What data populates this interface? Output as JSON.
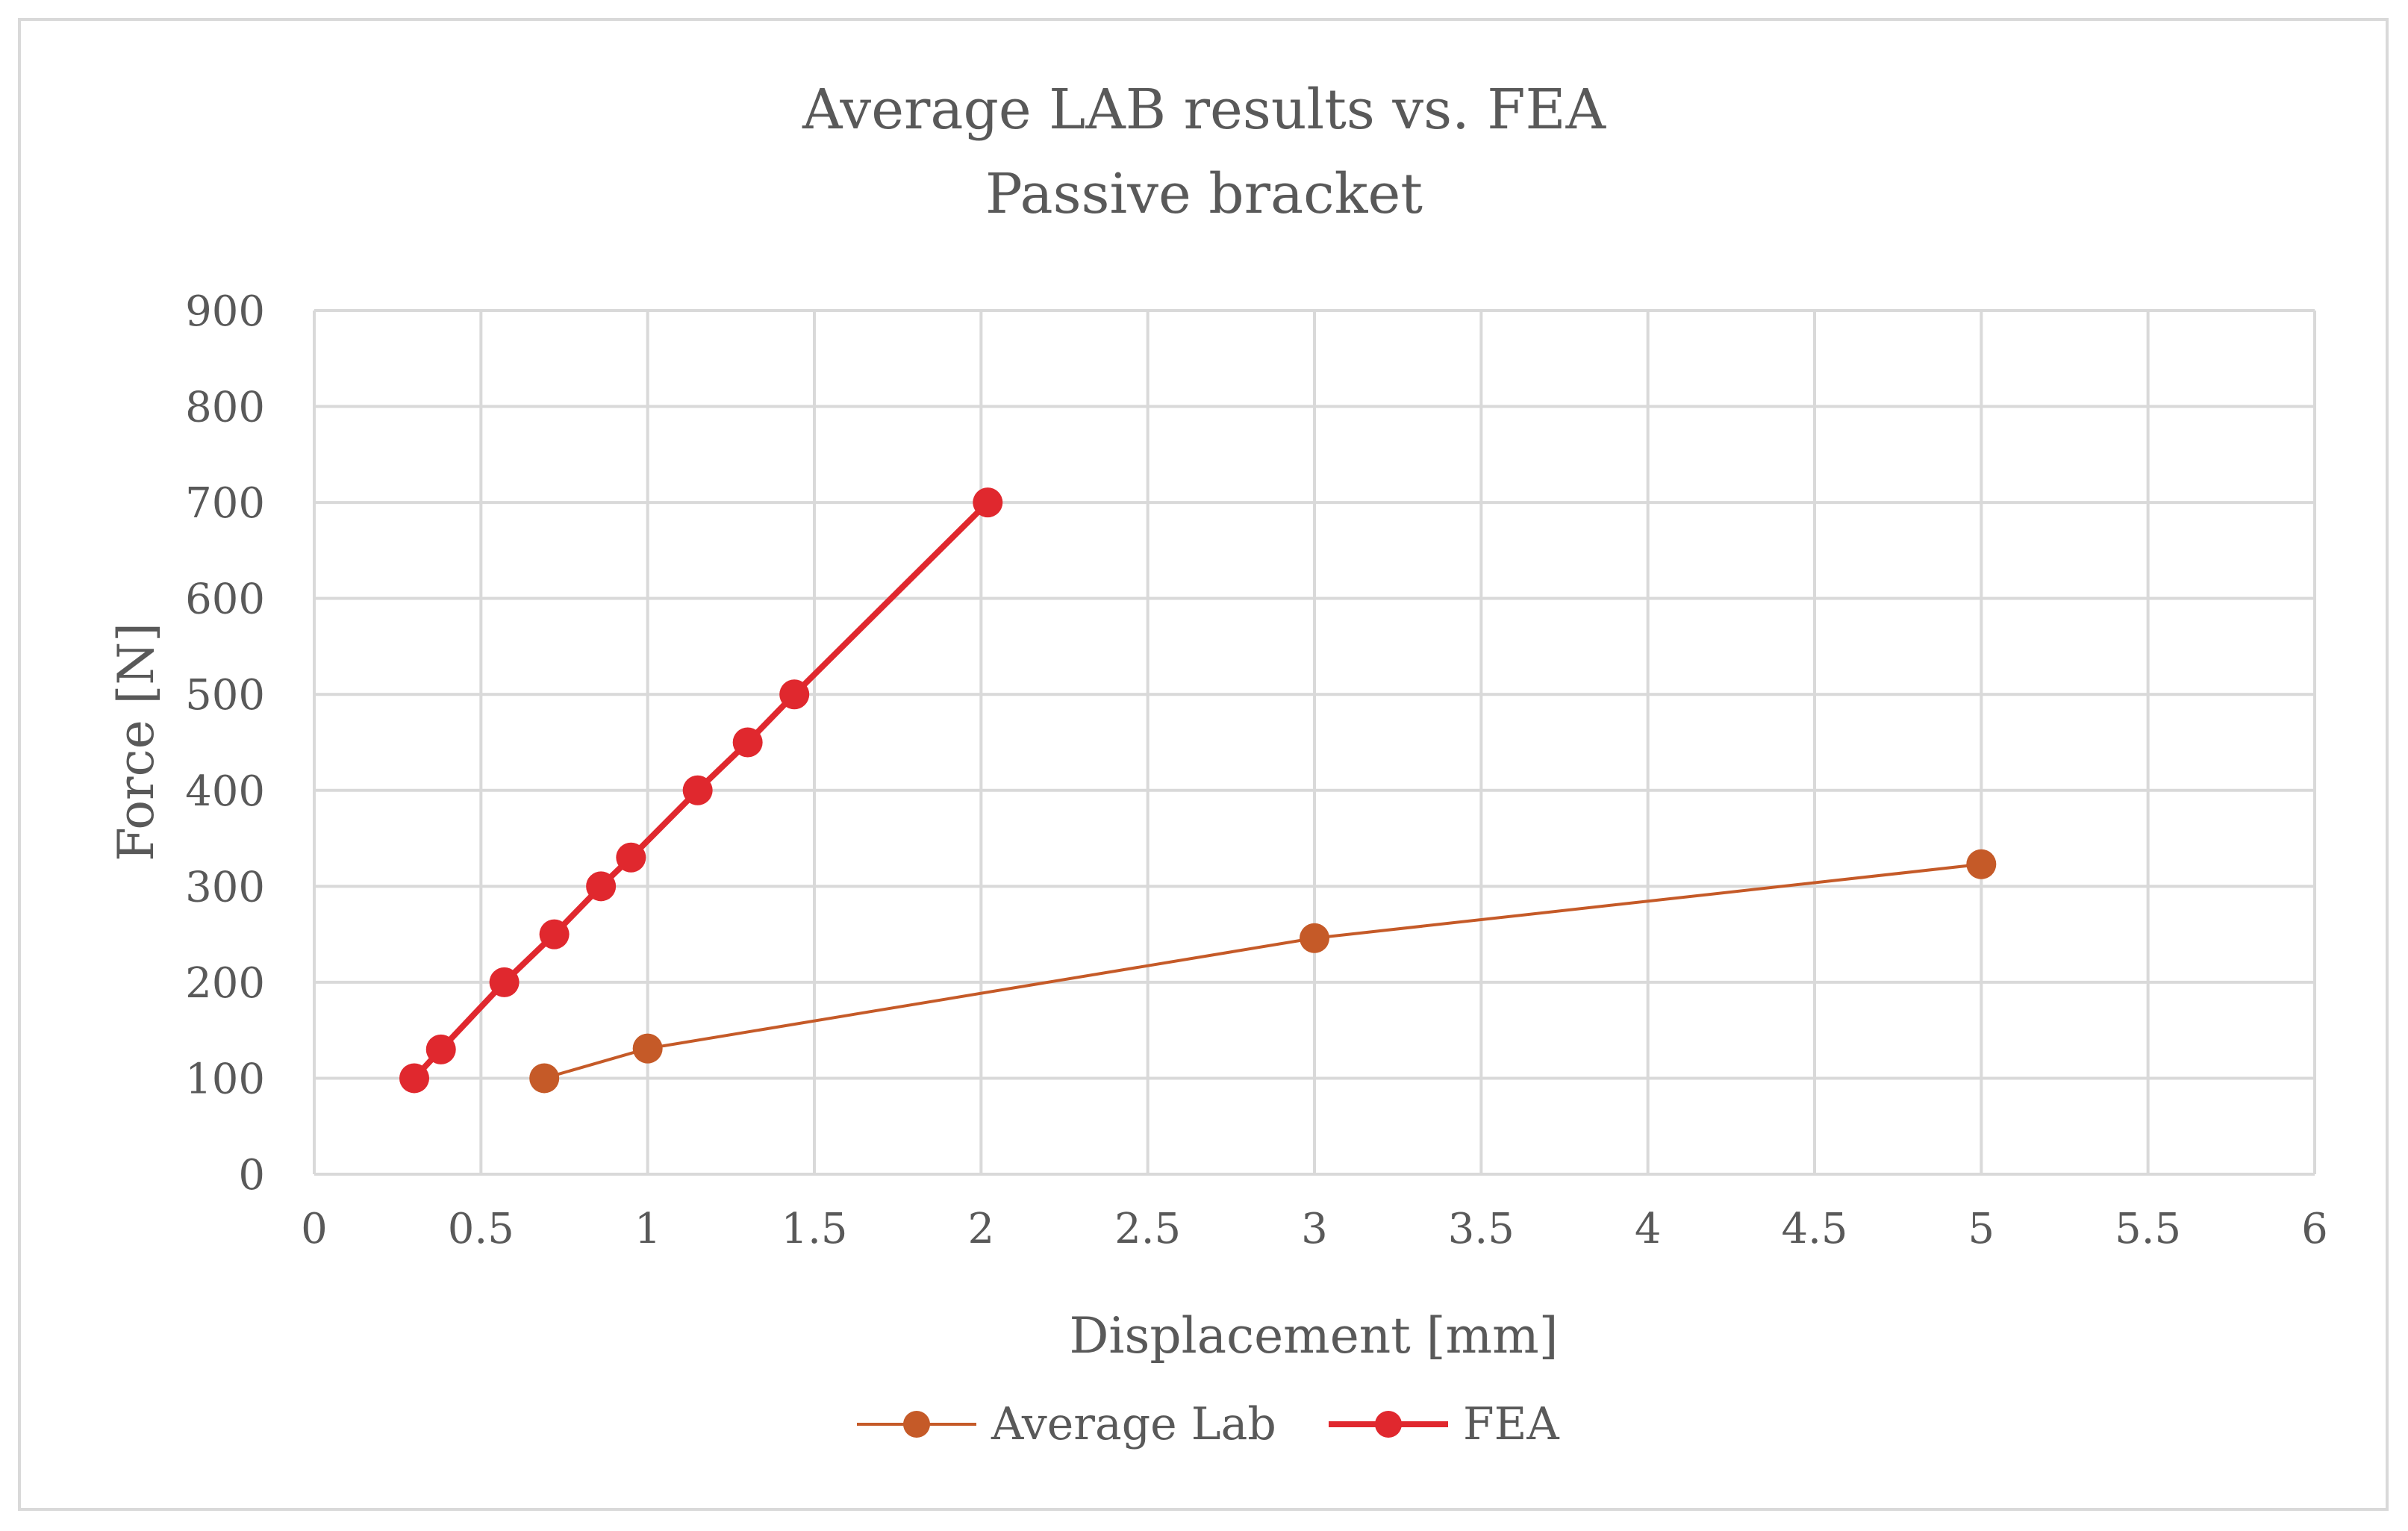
{
  "chart_data": {
    "type": "scatter",
    "title": [
      "Average LAB results vs. FEA",
      "Passive bracket"
    ],
    "xlabel": "Displacement [mm]",
    "ylabel": "Force [N]",
    "xlim": [
      0,
      6
    ],
    "ylim": [
      0,
      900
    ],
    "xticks": [
      0,
      0.5,
      1,
      1.5,
      2,
      2.5,
      3,
      3.5,
      4,
      4.5,
      5,
      5.5,
      6
    ],
    "xtick_labels": [
      "0",
      "0.5",
      "1",
      "1.5",
      "2",
      "2.5",
      "3",
      "3.5",
      "4",
      "4.5",
      "5",
      "5.5",
      "6"
    ],
    "yticks": [
      0,
      100,
      200,
      300,
      400,
      500,
      600,
      700,
      800,
      900
    ],
    "ytick_labels": [
      "0",
      "100",
      "200",
      "300",
      "400",
      "500",
      "600",
      "700",
      "800",
      "900"
    ],
    "grid": true,
    "legend_position": "bottom",
    "series": [
      {
        "name": "Average Lab",
        "color": "#c55a28",
        "x": [
          0.69,
          1.0,
          3.0,
          5.0
        ],
        "y": [
          100,
          131,
          246,
          323
        ]
      },
      {
        "name": "FEA",
        "color": "#e0282e",
        "x": [
          0.3,
          0.38,
          0.57,
          0.72,
          0.86,
          0.95,
          1.15,
          1.3,
          1.44,
          2.02
        ],
        "y": [
          100,
          130,
          200,
          250,
          300,
          330,
          400,
          450,
          500,
          700
        ]
      }
    ]
  }
}
